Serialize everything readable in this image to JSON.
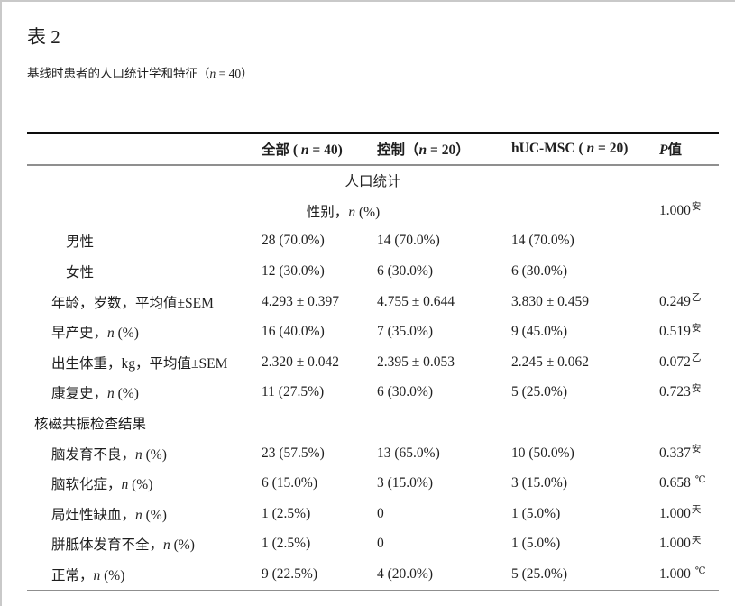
{
  "style": {
    "text_color": "#1f1f1f",
    "top_rule_color": "#0d0d0d",
    "gray_rule_color": "#8f8f8f",
    "frame_border_color": "#c9c9c9"
  },
  "page": {
    "title": "表 2",
    "subtitle": {
      "pre": "基线时患者的人口统计学和特征（",
      "it": "n",
      "post": " = 40）"
    }
  },
  "table": {
    "header": [
      {
        "name": "header-col-characteristic",
        "label": {
          "pre": ""
        }
      },
      {
        "name": "header-col-all",
        "label": {
          "pre": "全部 ( ",
          "it": "n",
          "post": " = 40)"
        }
      },
      {
        "name": "header-col-control",
        "label": {
          "pre": "控制（",
          "it": "n",
          "post": " = 20）"
        }
      },
      {
        "name": "header-col-hucmsc",
        "label": {
          "pre": "hUC-MSC ( ",
          "it": "n",
          "post": " = 20)"
        }
      },
      {
        "name": "header-col-pvalue",
        "label": {
          "pre": "",
          "it": "P",
          "post": "值"
        }
      }
    ],
    "rows": [
      {
        "kind": "section-center",
        "label": {
          "pre": "人口统计"
        }
      },
      {
        "kind": "span",
        "label": {
          "pre": "性别，",
          "it": "n",
          "post": " (%)"
        },
        "p": {
          "v": "1.000",
          "sup": "安",
          "sp": false
        }
      },
      {
        "kind": "item",
        "indent": 2,
        "label": {
          "pre": "男性"
        },
        "cells": [
          "28 (70.0%)",
          "14 (70.0%)",
          "14 (70.0%)"
        ]
      },
      {
        "kind": "item",
        "indent": 2,
        "label": {
          "pre": "女性"
        },
        "cells": [
          "12 (30.0%)",
          "6 (30.0%)",
          "6 (30.0%)"
        ]
      },
      {
        "kind": "item",
        "indent": 1,
        "label": {
          "pre": "年龄，岁数，平均值±SEM"
        },
        "cells": [
          "4.293 ± 0.397",
          "4.755 ± 0.644",
          "3.830 ± 0.459"
        ],
        "p": {
          "v": "0.249",
          "sup": "乙",
          "sp": false
        }
      },
      {
        "kind": "item",
        "indent": 1,
        "label": {
          "pre": "早产史，",
          "it": "n",
          "post": " (%)"
        },
        "cells": [
          "16 (40.0%)",
          "7 (35.0%)",
          "9 (45.0%)"
        ],
        "p": {
          "v": "0.519",
          "sup": "安",
          "sp": false
        }
      },
      {
        "kind": "item",
        "indent": 1,
        "label": {
          "pre": "出生体重，kg，平均值±SEM"
        },
        "cells": [
          "2.320 ± 0.042",
          "2.395 ± 0.053",
          "2.245 ± 0.062"
        ],
        "p": {
          "v": "0.072",
          "sup": "乙",
          "sp": false
        }
      },
      {
        "kind": "item",
        "indent": 1,
        "label": {
          "pre": "康复史，",
          "it": "n",
          "post": " (%)"
        },
        "cells": [
          "11 (27.5%)",
          "6 (30.0%)",
          "5 (25.0%)"
        ],
        "p": {
          "v": "0.723",
          "sup": "安",
          "sp": false
        }
      },
      {
        "kind": "section-left",
        "label": {
          "pre": "核磁共振检查结果"
        }
      },
      {
        "kind": "item",
        "indent": 1,
        "label": {
          "pre": "脑发育不良，",
          "it": "n",
          "post": " (%)"
        },
        "cells": [
          "23 (57.5%)",
          "13 (65.0%)",
          "10 (50.0%)"
        ],
        "p": {
          "v": "0.337",
          "sup": "安",
          "sp": false
        }
      },
      {
        "kind": "item",
        "indent": 1,
        "label": {
          "pre": "脑软化症，",
          "it": "n",
          "post": " (%)"
        },
        "cells": [
          "6 (15.0%)",
          "3 (15.0%)",
          "3 (15.0%)"
        ],
        "p": {
          "v": "0.658",
          "sup": "℃",
          "sp": true
        }
      },
      {
        "kind": "item",
        "indent": 1,
        "label": {
          "pre": "局灶性缺血，",
          "it": "n",
          "post": " (%)"
        },
        "cells": [
          "1 (2.5%)",
          "0",
          "1 (5.0%)"
        ],
        "p": {
          "v": "1.000",
          "sup": "天",
          "sp": false
        }
      },
      {
        "kind": "item",
        "indent": 1,
        "label": {
          "pre": "胼胝体发育不全，",
          "it": "n",
          "post": " (%)"
        },
        "cells": [
          "1 (2.5%)",
          "0",
          "1 (5.0%)"
        ],
        "p": {
          "v": "1.000",
          "sup": "天",
          "sp": false
        }
      },
      {
        "kind": "item",
        "indent": 1,
        "label": {
          "pre": "正常，",
          "it": "n",
          "post": " (%)"
        },
        "cells": [
          "9 (22.5%)",
          "4 (20.0%)",
          "5 (25.0%)"
        ],
        "p": {
          "v": "1.000",
          "sup": "℃",
          "sp": true
        }
      }
    ]
  }
}
